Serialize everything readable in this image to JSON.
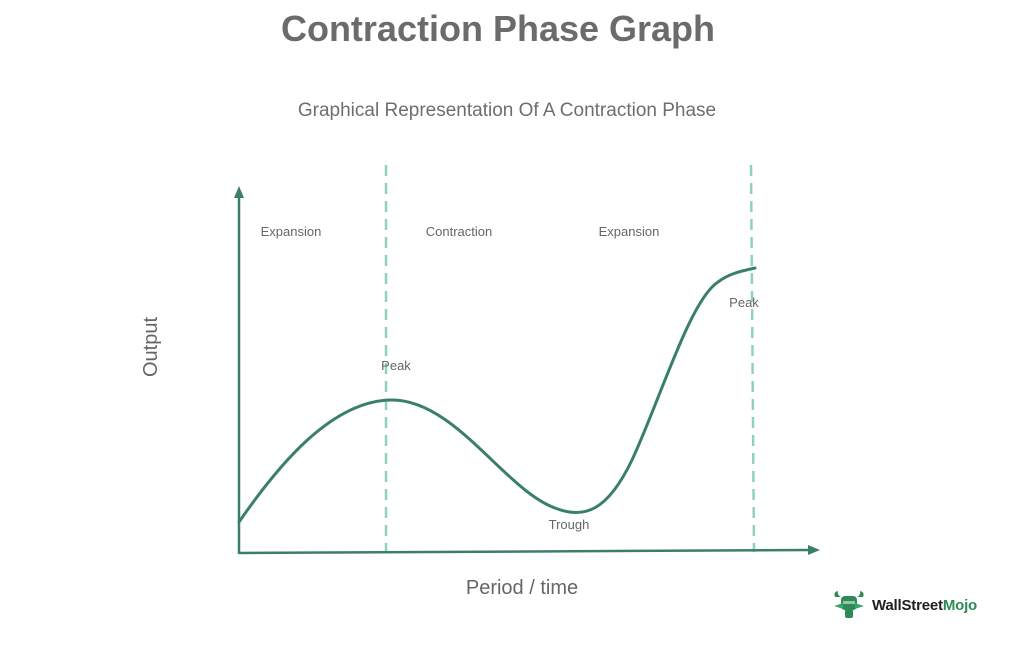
{
  "title": "Contraction Phase Graph",
  "subtitle": "Graphical Representation Of A Contraction Phase",
  "axes": {
    "x_label": "Period / time",
    "y_label": "Output"
  },
  "phases": [
    {
      "label": "Expansion"
    },
    {
      "label": "Contraction"
    },
    {
      "label": "Expansion"
    }
  ],
  "points": {
    "peak_1": "Peak",
    "trough": "Trough",
    "peak_2": "Peak"
  },
  "brand": {
    "name_part_1": "Wall",
    "name_part_2": "Street",
    "name_part_3": "Mojo",
    "logo_icon": "bull-icon"
  },
  "colors": {
    "curve": "#3a7f6c",
    "axis": "#3a7f6c",
    "divider": "#8fd1c1",
    "text": "#666666",
    "title": "#6b6b6b",
    "brand_accent": "#2e8b57"
  }
}
